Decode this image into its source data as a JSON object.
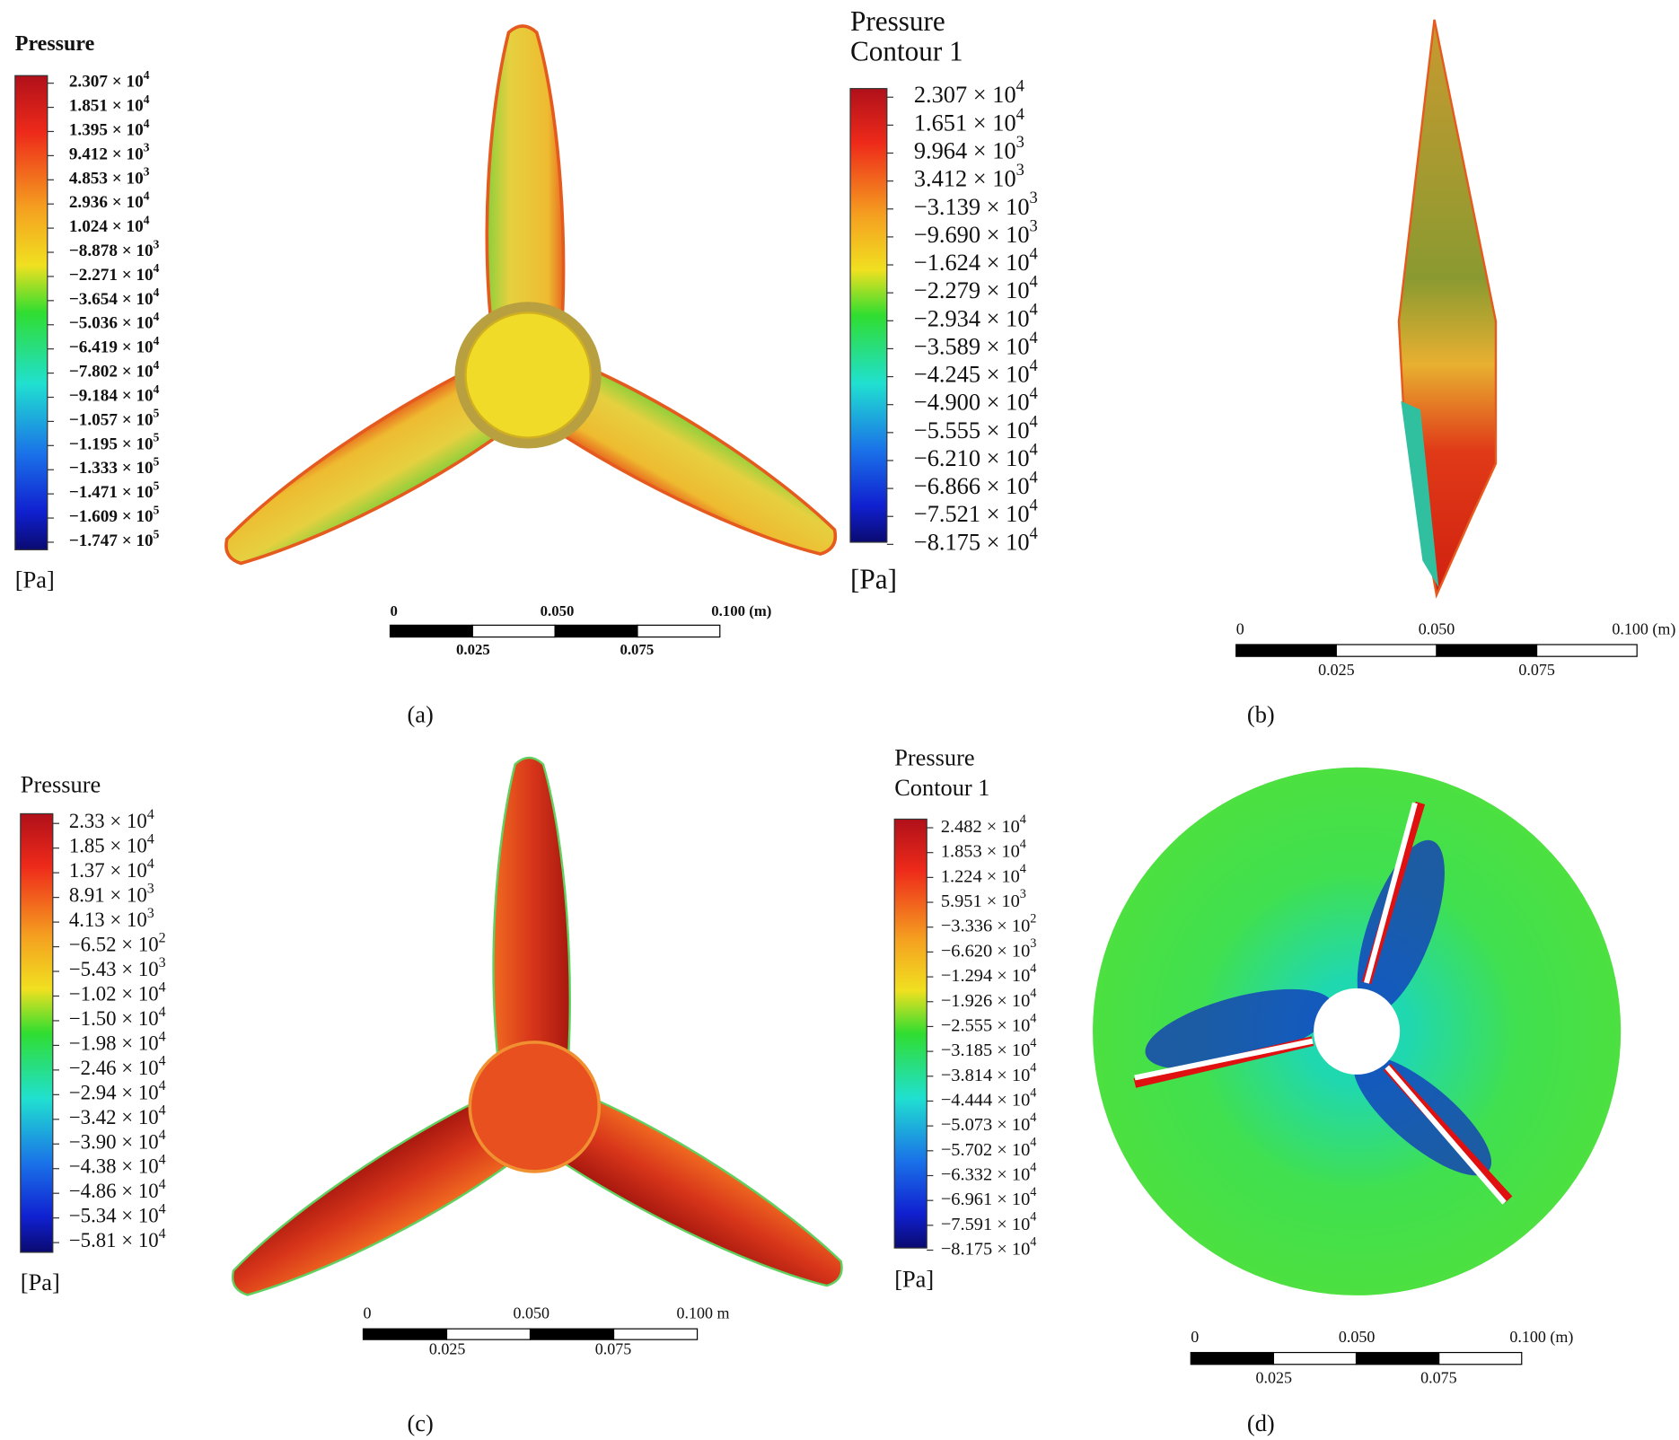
{
  "panels": [
    {
      "label": "(a)",
      "legend": {
        "title": [
          "Pressure"
        ],
        "unit": "[Pa]",
        "ticks": [
          {
            "m": "2.307 × 10",
            "e": "4"
          },
          {
            "m": "1.851 × 10",
            "e": "4"
          },
          {
            "m": "1.395 × 10",
            "e": "4"
          },
          {
            "m": "9.412 × 10",
            "e": "3"
          },
          {
            "m": "4.853 × 10",
            "e": "3"
          },
          {
            "m": "2.936 × 10",
            "e": "4"
          },
          {
            "m": "1.024 × 10",
            "e": "4"
          },
          {
            "m": "−8.878 × 10",
            "e": "3"
          },
          {
            "m": "−2.271 × 10",
            "e": "4"
          },
          {
            "m": "−3.654 × 10",
            "e": "4"
          },
          {
            "m": "−5.036 × 10",
            "e": "4"
          },
          {
            "m": "−6.419 × 10",
            "e": "4"
          },
          {
            "m": "−7.802 × 10",
            "e": "4"
          },
          {
            "m": "−9.184 × 10",
            "e": "4"
          },
          {
            "m": "−1.057 × 10",
            "e": "5"
          },
          {
            "m": "−1.195 × 10",
            "e": "5"
          },
          {
            "m": "−1.333 × 10",
            "e": "5"
          },
          {
            "m": "−1.471 × 10",
            "e": "5"
          },
          {
            "m": "−1.609 × 10",
            "e": "5"
          },
          {
            "m": "−1.747 × 10",
            "e": "5"
          }
        ]
      },
      "scale": {
        "top": [
          "0",
          "0.050",
          "0.100 (m)"
        ],
        "bottom": [
          "0.025",
          "0.075"
        ]
      }
    },
    {
      "label": "(b)",
      "legend": {
        "title": [
          "Pressure",
          "Contour 1"
        ],
        "unit": "[Pa]",
        "ticks": [
          {
            "m": "2.307 × 10",
            "e": "4"
          },
          {
            "m": "1.651 × 10",
            "e": "4"
          },
          {
            "m": "9.964 × 10",
            "e": "3"
          },
          {
            "m": "3.412 × 10",
            "e": "3"
          },
          {
            "m": "−3.139 × 10",
            "e": "3"
          },
          {
            "m": "−9.690 × 10",
            "e": "3"
          },
          {
            "m": "−1.624 × 10",
            "e": "4"
          },
          {
            "m": "−2.279 × 10",
            "e": "4"
          },
          {
            "m": "−2.934 × 10",
            "e": "4"
          },
          {
            "m": "−3.589 × 10",
            "e": "4"
          },
          {
            "m": "−4.245 × 10",
            "e": "4"
          },
          {
            "m": "−4.900 × 10",
            "e": "4"
          },
          {
            "m": "−5.555 × 10",
            "e": "4"
          },
          {
            "m": "−6.210 × 10",
            "e": "4"
          },
          {
            "m": "−6.866 × 10",
            "e": "4"
          },
          {
            "m": "−7.521 × 10",
            "e": "4"
          },
          {
            "m": "−8.175 × 10",
            "e": "4"
          }
        ]
      },
      "scale": {
        "top": [
          "0",
          "0.050",
          "0.100 (m)"
        ],
        "bottom": [
          "0.025",
          "0.075"
        ]
      }
    },
    {
      "label": "(c)",
      "legend": {
        "title": [
          "Pressure"
        ],
        "unit": "[Pa]",
        "ticks": [
          {
            "m": "2.33 × 10",
            "e": "4"
          },
          {
            "m": "1.85 × 10",
            "e": "4"
          },
          {
            "m": "1.37 × 10",
            "e": "4"
          },
          {
            "m": "8.91 × 10",
            "e": "3"
          },
          {
            "m": "4.13 × 10",
            "e": "3"
          },
          {
            "m": "−6.52 × 10",
            "e": "2"
          },
          {
            "m": "−5.43 × 10",
            "e": "3"
          },
          {
            "m": "−1.02 × 10",
            "e": "4"
          },
          {
            "m": "−1.50 × 10",
            "e": "4"
          },
          {
            "m": "−1.98 × 10",
            "e": "4"
          },
          {
            "m": "−2.46 × 10",
            "e": "4"
          },
          {
            "m": "−2.94 × 10",
            "e": "4"
          },
          {
            "m": "−3.42 × 10",
            "e": "4"
          },
          {
            "m": "−3.90 × 10",
            "e": "4"
          },
          {
            "m": "−4.38 × 10",
            "e": "4"
          },
          {
            "m": "−4.86 × 10",
            "e": "4"
          },
          {
            "m": "−5.34 × 10",
            "e": "4"
          },
          {
            "m": "−5.81 × 10",
            "e": "4"
          }
        ]
      },
      "scale": {
        "top": [
          "0",
          "0.050",
          "0.100 m"
        ],
        "bottom": [
          "0.025",
          "0.075"
        ]
      }
    },
    {
      "label": "(d)",
      "legend": {
        "title": [
          "Pressure",
          "Contour 1"
        ],
        "unit": "[Pa]",
        "ticks": [
          {
            "m": "2.482 × 10",
            "e": "4"
          },
          {
            "m": "1.853 × 10",
            "e": "4"
          },
          {
            "m": "1.224 × 10",
            "e": "4"
          },
          {
            "m": "5.951 × 10",
            "e": "3"
          },
          {
            "m": "−3.336 × 10",
            "e": "2"
          },
          {
            "m": "−6.620 × 10",
            "e": "3"
          },
          {
            "m": "−1.294 × 10",
            "e": "4"
          },
          {
            "m": "−1.926 × 10",
            "e": "4"
          },
          {
            "m": "−2.555 × 10",
            "e": "4"
          },
          {
            "m": "−3.185 × 10",
            "e": "4"
          },
          {
            "m": "−3.814 × 10",
            "e": "4"
          },
          {
            "m": "−4.444 × 10",
            "e": "4"
          },
          {
            "m": "−5.073 × 10",
            "e": "4"
          },
          {
            "m": "−5.702 × 10",
            "e": "4"
          },
          {
            "m": "−6.332 × 10",
            "e": "4"
          },
          {
            "m": "−6.961 × 10",
            "e": "4"
          },
          {
            "m": "−7.591 × 10",
            "e": "4"
          },
          {
            "m": "−8.175 × 10",
            "e": "4"
          }
        ]
      },
      "scale": {
        "top": [
          "0",
          "0.050",
          "0.100 (m)"
        ],
        "bottom": [
          "0.025",
          "0.075"
        ]
      }
    }
  ]
}
